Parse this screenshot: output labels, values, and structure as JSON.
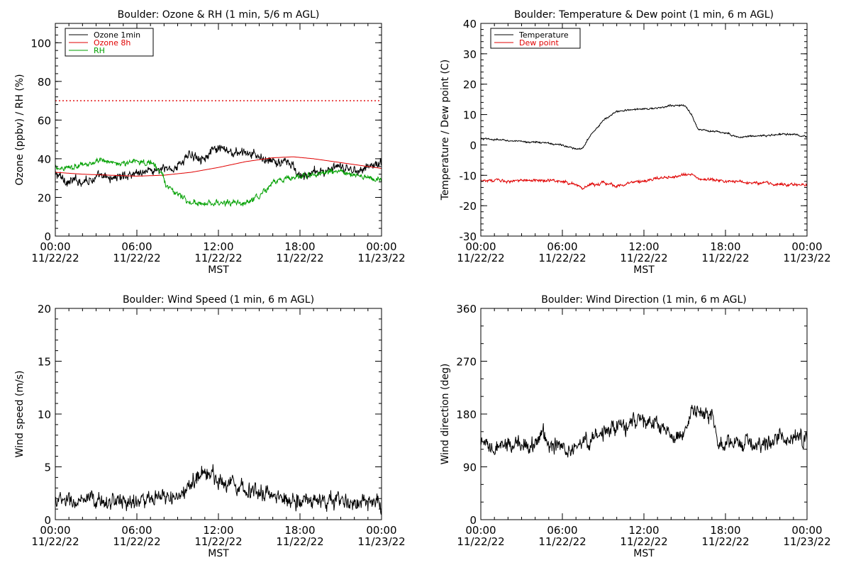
{
  "chart_data": [
    {
      "id": "ozone",
      "type": "line",
      "title": "Boulder: Ozone & RH (1 min, 5/6 m AGL)",
      "xlabel": "MST",
      "ylabel": "Ozone (ppbv) / RH (%)",
      "ylim": [
        0,
        110
      ],
      "yticks": [
        0,
        20,
        40,
        60,
        80,
        100
      ],
      "xlim": [
        "2022-11-22 00:00",
        "2022-11-23 00:00"
      ],
      "xtick_times": [
        "00:00",
        "06:00",
        "12:00",
        "18:00",
        "00:00"
      ],
      "xtick_dates": [
        "11/22/22",
        "11/22/22",
        "11/22/22",
        "11/22/22",
        "11/23/22"
      ],
      "legend": {
        "position": "top-left",
        "entries": [
          {
            "label": "Ozone 1min",
            "color": "#000000"
          },
          {
            "label": "Ozone 8h",
            "color": "#e00000"
          },
          {
            "label": "RH",
            "color": "#00a000"
          }
        ]
      },
      "reference_lines": [
        {
          "y": 70,
          "style": "dotted",
          "color": "#e00000"
        }
      ],
      "series": [
        {
          "name": "Ozone 1min",
          "color": "#000000",
          "noise": 2.5,
          "x": [
            0,
            1,
            2,
            3,
            4,
            5,
            6,
            7,
            8,
            9,
            9.5,
            10,
            11,
            12,
            13,
            14,
            15,
            16,
            17,
            17.5,
            18,
            19,
            20,
            21,
            22,
            23,
            24
          ],
          "y": [
            32,
            28,
            29,
            30,
            30,
            31,
            33,
            34,
            34,
            36,
            40,
            42,
            41,
            45,
            43,
            43,
            41,
            38,
            38,
            36,
            30,
            33,
            34,
            35,
            34,
            36,
            38
          ]
        },
        {
          "name": "Ozone 8h",
          "color": "#e00000",
          "noise": 0,
          "x": [
            0,
            2,
            4,
            6,
            8,
            10,
            12,
            14,
            16,
            17.5,
            19,
            21,
            23,
            24
          ],
          "y": [
            33,
            32,
            31.5,
            31,
            31.5,
            33,
            35.5,
            38.5,
            40.5,
            41,
            40,
            38,
            36,
            35
          ]
        },
        {
          "name": "RH",
          "color": "#00a000",
          "noise": 1.5,
          "x": [
            0,
            2,
            3,
            4,
            5,
            6,
            7,
            7.8,
            8.2,
            9,
            10,
            11,
            12,
            13,
            14,
            15,
            16,
            17,
            18,
            19,
            20,
            21,
            22,
            23,
            24
          ],
          "y": [
            35,
            37,
            38,
            39,
            37,
            39,
            38,
            33,
            26,
            22,
            17,
            16.5,
            17,
            17,
            17,
            20,
            28,
            30,
            31,
            32,
            33,
            33,
            31,
            30,
            29
          ]
        }
      ]
    },
    {
      "id": "temp",
      "type": "line",
      "title": "Boulder: Temperature & Dew point (1 min, 6 m AGL)",
      "xlabel": "MST",
      "ylabel": "Temperature / Dew point (C)",
      "ylim": [
        -30,
        40
      ],
      "yticks": [
        -30,
        -20,
        -10,
        0,
        10,
        20,
        30,
        40
      ],
      "xlim": [
        "2022-11-22 00:00",
        "2022-11-23 00:00"
      ],
      "xtick_times": [
        "00:00",
        "06:00",
        "12:00",
        "18:00",
        "00:00"
      ],
      "xtick_dates": [
        "11/22/22",
        "11/22/22",
        "11/22/22",
        "11/22/22",
        "11/23/22"
      ],
      "legend": {
        "position": "top-left",
        "entries": [
          {
            "label": "Temperature",
            "color": "#000000"
          },
          {
            "label": "Dew point",
            "color": "#e00000"
          }
        ]
      },
      "reference_lines": [],
      "series": [
        {
          "name": "Temperature",
          "color": "#000000",
          "noise": 0.3,
          "x": [
            0,
            2,
            3,
            4,
            5,
            6,
            7,
            7.5,
            8,
            9,
            10,
            11,
            12,
            13,
            14,
            15,
            15.5,
            16,
            17,
            18,
            19,
            20,
            21,
            22,
            23,
            24
          ],
          "y": [
            2,
            1.5,
            1,
            1,
            0.5,
            0,
            -1.5,
            -1,
            3,
            8,
            11,
            11.5,
            12,
            12,
            13,
            13,
            10,
            5,
            4.5,
            4,
            2.5,
            3,
            3,
            3.5,
            3.5,
            2.5
          ]
        },
        {
          "name": "Dew point",
          "color": "#e00000",
          "noise": 0.5,
          "x": [
            0,
            2,
            4,
            6,
            7,
            7.5,
            8,
            9,
            10,
            11,
            12,
            13,
            14,
            15,
            15.5,
            16,
            17,
            18,
            19,
            20,
            21,
            22,
            23,
            24
          ],
          "y": [
            -11.5,
            -12,
            -11.5,
            -12,
            -13,
            -14.5,
            -13,
            -12.5,
            -13.5,
            -12.5,
            -12,
            -11,
            -10.5,
            -10,
            -9.5,
            -11,
            -11.5,
            -12,
            -12,
            -12.5,
            -12.5,
            -13,
            -13,
            -13.5
          ]
        }
      ]
    },
    {
      "id": "wspd",
      "type": "line",
      "title": "Boulder: Wind Speed (1 min, 6 m AGL)",
      "xlabel": "MST",
      "ylabel": "Wind speed (m/s)",
      "ylim": [
        0,
        20
      ],
      "yticks": [
        0,
        5,
        10,
        15,
        20
      ],
      "xlim": [
        "2022-11-22 00:00",
        "2022-11-23 00:00"
      ],
      "xtick_times": [
        "00:00",
        "06:00",
        "12:00",
        "18:00",
        "00:00"
      ],
      "xtick_dates": [
        "11/22/22",
        "11/22/22",
        "11/22/22",
        "11/22/22",
        "11/23/22"
      ],
      "reference_lines": [],
      "series": [
        {
          "color": "#000000",
          "noise": 0.8,
          "x": [
            0,
            2,
            4,
            6,
            8,
            9,
            10,
            10.5,
            11,
            11.5,
            12,
            13,
            14,
            15,
            16,
            17,
            18,
            19,
            20,
            21,
            22,
            23,
            24
          ],
          "y": [
            1.8,
            1.6,
            1.8,
            1.7,
            2,
            2.1,
            3,
            4.5,
            4.5,
            4.2,
            3.8,
            3.5,
            3,
            2.6,
            2.2,
            2,
            1.9,
            1.8,
            1.7,
            1.8,
            1.6,
            1.5,
            1.2
          ]
        }
      ]
    },
    {
      "id": "wdir",
      "type": "line",
      "title": "Boulder: Wind Direction (1 min, 6 m AGL)",
      "xlabel": "MST",
      "ylabel": "Wind direction (deg)",
      "ylim": [
        0,
        360
      ],
      "yticks": [
        0,
        90,
        180,
        270,
        360
      ],
      "xlim": [
        "2022-11-22 00:00",
        "2022-11-23 00:00"
      ],
      "xtick_times": [
        "00:00",
        "06:00",
        "12:00",
        "18:00",
        "00:00"
      ],
      "xtick_dates": [
        "11/22/22",
        "11/22/22",
        "11/22/22",
        "11/22/22",
        "11/23/22"
      ],
      "reference_lines": [],
      "series": [
        {
          "color": "#000000",
          "noise": 14,
          "x": [
            0,
            1,
            2,
            3,
            4,
            4.5,
            5,
            6,
            7,
            8,
            9,
            10,
            11,
            12,
            13,
            14,
            15,
            15.5,
            16,
            17,
            17.5,
            18,
            19,
            20,
            21,
            22,
            23,
            24
          ],
          "y": [
            125,
            120,
            125,
            130,
            130,
            150,
            130,
            120,
            125,
            135,
            150,
            155,
            165,
            170,
            160,
            140,
            140,
            190,
            185,
            180,
            125,
            125,
            130,
            130,
            130,
            140,
            140,
            140
          ]
        }
      ]
    }
  ]
}
